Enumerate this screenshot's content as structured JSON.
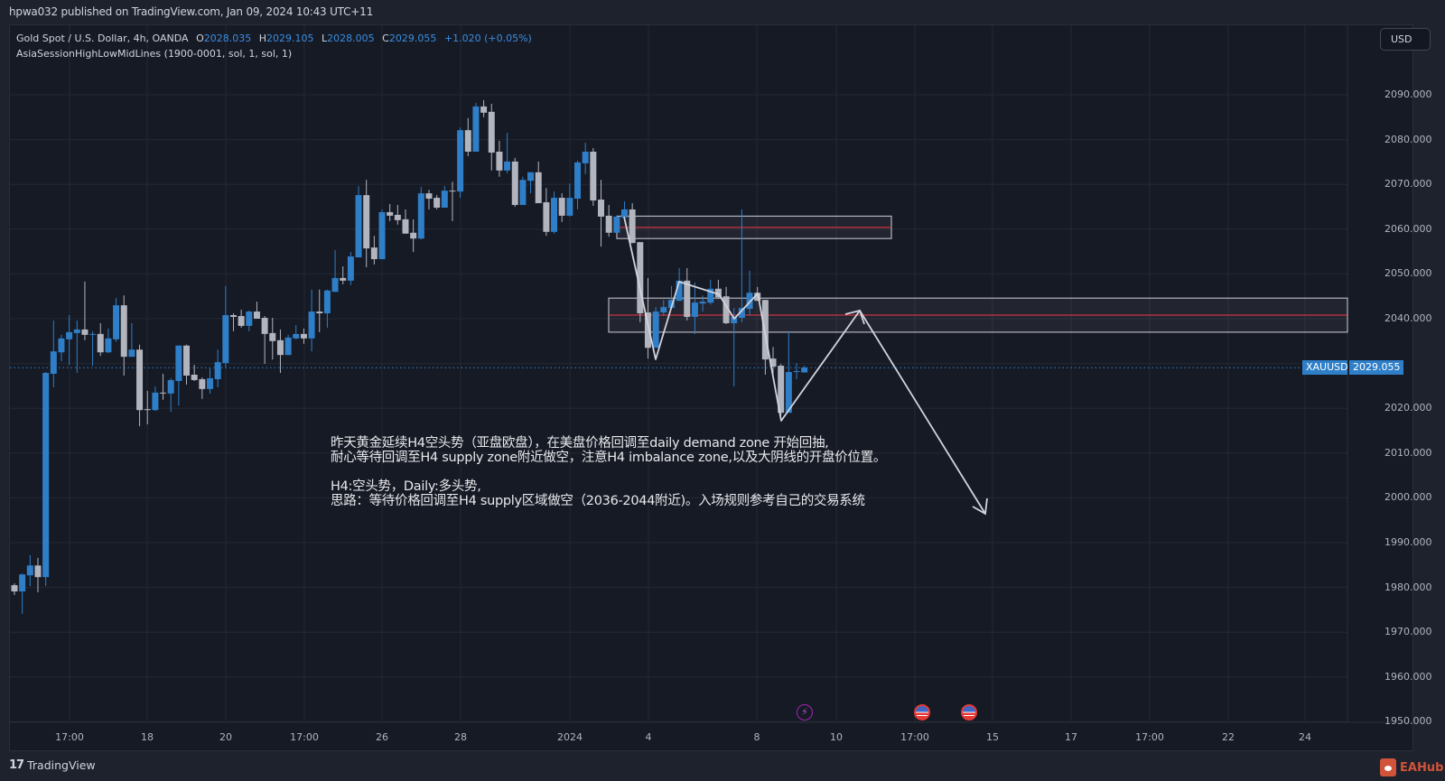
{
  "header": {
    "publish_line": "hpwa032 published on TradingView.com, Jan 09, 2024 10:43 UTC+11"
  },
  "legend": {
    "symbol_desc": "Gold Spot / U.S. Dollar, 4h, OANDA",
    "o_label": "O",
    "o_value": "2028.035",
    "h_label": "H",
    "h_value": "2029.105",
    "l_label": "L",
    "l_value": "2028.005",
    "c_label": "C",
    "c_value": "2029.055",
    "change": "+1.020 (+0.05%)",
    "indicator": "AsiaSessionHighLowMidLines (1900-0001, sol, 1, sol, 1)"
  },
  "currency_button": "USD",
  "price_tag": {
    "symbol": "XAUUSD",
    "price": "2029.055"
  },
  "annotation": {
    "lines": [
      "昨天黄金延续H4空头势（亚盘欧盘），在美盘价格回调至daily demand zone 开始回抽,",
      "耐心等待回调至H4 supply zone附近做空，注意H4 imbalance zone,以及大阴线的开盘价位置。",
      "",
      "H4:空头势，Daily:多头势,",
      "思路：等待价格回调至H4 supply区域做空（2036-2044附近)。入场规则参考自己的交易系统"
    ]
  },
  "footer": {
    "brand": "TradingView",
    "watermark": "EAHub"
  },
  "colors": {
    "up": "#2f7fc8",
    "down": "#b2b5be",
    "zone_line": "#f23645",
    "zone_border": "#b2b5be",
    "accent": "#2f7fc8"
  },
  "events": [
    {
      "type": "lightning-icon",
      "x": 891
    },
    {
      "type": "us-flag-icon",
      "x": 1021
    },
    {
      "type": "us-flag-icon",
      "x": 1073
    }
  ],
  "chart_data": {
    "type": "candlestick",
    "title": "Gold Spot / U.S. Dollar, 4h, OANDA",
    "symbol": "XAUUSD",
    "timeframe": "4h",
    "xlabel": "",
    "ylabel": "USD",
    "ylim": [
      1946,
      2096
    ],
    "y_ticks": [
      2090,
      2080,
      2070,
      2060,
      2050,
      2040,
      2030,
      2020,
      2010,
      2000,
      1990,
      1980,
      1970,
      1960,
      1950
    ],
    "x_ticks": [
      {
        "label": "17:00",
        "x": 77
      },
      {
        "label": "18",
        "x": 163
      },
      {
        "label": "20",
        "x": 250
      },
      {
        "label": "17:00",
        "x": 337
      },
      {
        "label": "26",
        "x": 423
      },
      {
        "label": "28",
        "x": 510
      },
      {
        "label": "2024",
        "x": 631
      },
      {
        "label": "4",
        "x": 718
      },
      {
        "label": "8",
        "x": 838
      },
      {
        "label": "10",
        "x": 926
      },
      {
        "label": "17:00",
        "x": 1013
      },
      {
        "label": "15",
        "x": 1099
      },
      {
        "label": "17",
        "x": 1186
      },
      {
        "label": "17:00",
        "x": 1273
      },
      {
        "label": "22",
        "x": 1360
      },
      {
        "label": "24",
        "x": 1445
      }
    ],
    "last_price": 2029.055,
    "candles": [
      [
        1980.5,
        1980.9,
        1978.3,
        1979.1
      ],
      [
        1979.1,
        1983.1,
        1974.1,
        1982.9
      ],
      [
        1982.7,
        1987.2,
        1980.3,
        1984.9
      ],
      [
        1984.9,
        1986.6,
        1978.9,
        1982.3
      ],
      [
        1982.3,
        2028.1,
        1980.3,
        2027.9
      ],
      [
        2027.7,
        2039.6,
        2024.7,
        2032.7
      ],
      [
        2032.5,
        2036.4,
        2030.5,
        2035.6
      ],
      [
        2035.4,
        2040.8,
        2029.7,
        2037.0
      ],
      [
        2036.8,
        2039.6,
        2027.9,
        2037.6
      ],
      [
        2037.6,
        2048.3,
        2035.2,
        2036.4
      ],
      [
        2036.4,
        2037.2,
        2029.5,
        2036.6
      ],
      [
        2036.6,
        2039.0,
        2031.7,
        2032.5
      ],
      [
        2032.5,
        2037.8,
        2032.3,
        2035.6
      ],
      [
        2035.4,
        2044.6,
        2034.8,
        2043.0
      ],
      [
        2043.0,
        2045.2,
        2027.3,
        2031.5
      ],
      [
        2031.5,
        2039.0,
        2031.5,
        2033.1
      ],
      [
        2033.1,
        2034.2,
        2016.0,
        2019.6
      ],
      [
        2019.8,
        2023.9,
        2016.4,
        2019.6
      ],
      [
        2019.6,
        2024.9,
        2019.4,
        2023.5
      ],
      [
        2023.5,
        2027.7,
        2021.9,
        2023.3
      ],
      [
        2023.3,
        2026.7,
        2019.2,
        2026.3
      ],
      [
        2026.1,
        2034.0,
        2020.6,
        2034.0
      ],
      [
        2034.0,
        2034.2,
        2025.3,
        2027.3
      ],
      [
        2027.5,
        2029.7,
        2026.1,
        2026.3
      ],
      [
        2026.5,
        2026.9,
        2022.1,
        2024.3
      ],
      [
        2024.3,
        2028.9,
        2023.3,
        2026.7
      ],
      [
        2026.5,
        2033.1,
        2024.7,
        2030.3
      ],
      [
        2030.1,
        2047.3,
        2029.1,
        2040.8
      ],
      [
        2040.8,
        2041.2,
        2037.2,
        2040.4
      ],
      [
        2040.6,
        2042.0,
        2038.0,
        2038.4
      ],
      [
        2038.4,
        2041.8,
        2037.2,
        2041.6
      ],
      [
        2041.6,
        2043.8,
        2040.0,
        2040.0
      ],
      [
        2040.2,
        2040.6,
        2029.9,
        2036.6
      ],
      [
        2036.8,
        2040.2,
        2030.9,
        2035.0
      ],
      [
        2035.2,
        2037.6,
        2027.9,
        2031.9
      ],
      [
        2031.9,
        2036.4,
        2031.9,
        2035.8
      ],
      [
        2035.6,
        2038.6,
        2035.4,
        2036.6
      ],
      [
        2036.6,
        2037.8,
        2034.4,
        2035.6
      ],
      [
        2035.6,
        2046.5,
        2032.7,
        2041.6
      ],
      [
        2041.6,
        2046.5,
        2037.0,
        2041.2
      ],
      [
        2041.2,
        2046.5,
        2038.0,
        2046.3
      ],
      [
        2046.0,
        2055.3,
        2046.0,
        2049.1
      ],
      [
        2049.1,
        2051.7,
        2047.7,
        2048.5
      ],
      [
        2048.5,
        2054.9,
        2047.5,
        2053.9
      ],
      [
        2053.7,
        2069.6,
        2053.7,
        2067.6
      ],
      [
        2067.6,
        2071.0,
        2051.5,
        2055.7
      ],
      [
        2055.9,
        2058.5,
        2052.1,
        2053.3
      ],
      [
        2053.3,
        2064.4,
        2053.3,
        2063.8
      ],
      [
        2063.8,
        2065.6,
        2061.8,
        2063.0
      ],
      [
        2063.2,
        2065.4,
        2061.0,
        2062.0
      ],
      [
        2062.2,
        2064.4,
        2059.0,
        2059.0
      ],
      [
        2059.2,
        2062.2,
        2054.9,
        2057.9
      ],
      [
        2057.9,
        2069.4,
        2057.7,
        2068.0
      ],
      [
        2068.0,
        2068.8,
        2064.4,
        2066.8
      ],
      [
        2067.0,
        2067.6,
        2064.4,
        2064.8
      ],
      [
        2064.8,
        2069.6,
        2064.8,
        2068.6
      ],
      [
        2068.6,
        2070.6,
        2061.8,
        2068.4
      ],
      [
        2068.4,
        2082.7,
        2067.0,
        2082.1
      ],
      [
        2082.1,
        2084.8,
        2076.3,
        2077.3
      ],
      [
        2077.3,
        2088.2,
        2077.3,
        2087.4
      ],
      [
        2087.4,
        2088.8,
        2085.0,
        2086.0
      ],
      [
        2086.2,
        2088.0,
        2073.1,
        2077.1
      ],
      [
        2077.3,
        2079.7,
        2071.7,
        2073.1
      ],
      [
        2073.1,
        2081.5,
        2072.5,
        2075.1
      ],
      [
        2075.1,
        2075.9,
        2065.0,
        2065.4
      ],
      [
        2065.4,
        2071.7,
        2065.4,
        2071.0
      ],
      [
        2070.8,
        2072.7,
        2068.0,
        2072.7
      ],
      [
        2072.7,
        2075.1,
        2065.8,
        2065.8
      ],
      [
        2066.0,
        2069.2,
        2058.5,
        2059.4
      ],
      [
        2059.4,
        2068.4,
        2059.0,
        2067.0
      ],
      [
        2067.0,
        2068.0,
        2061.6,
        2063.0
      ],
      [
        2063.0,
        2070.2,
        2062.8,
        2067.0
      ],
      [
        2066.8,
        2075.3,
        2064.4,
        2074.9
      ],
      [
        2074.7,
        2079.3,
        2072.3,
        2077.3
      ],
      [
        2077.3,
        2078.1,
        2065.2,
        2066.4
      ],
      [
        2066.6,
        2071.0,
        2056.1,
        2062.8
      ],
      [
        2063.0,
        2065.4,
        2058.3,
        2059.2
      ],
      [
        2059.2,
        2063.0,
        2059.2,
        2062.8
      ],
      [
        2062.6,
        2066.2,
        2062.6,
        2064.4
      ],
      [
        2064.4,
        2065.8,
        2056.9,
        2056.9
      ],
      [
        2057.1,
        2057.1,
        2039.2,
        2041.2
      ],
      [
        2041.4,
        2049.1,
        2031.1,
        2033.5
      ],
      [
        2033.5,
        2042.6,
        2033.5,
        2041.6
      ],
      [
        2041.4,
        2044.2,
        2040.6,
        2042.6
      ],
      [
        2042.4,
        2047.3,
        2042.4,
        2044.2
      ],
      [
        2044.0,
        2051.3,
        2044.0,
        2048.5
      ],
      [
        2048.5,
        2051.3,
        2039.6,
        2040.4
      ],
      [
        2040.4,
        2048.1,
        2036.6,
        2043.6
      ],
      [
        2043.4,
        2045.2,
        2041.6,
        2043.8
      ],
      [
        2043.6,
        2048.7,
        2043.2,
        2046.7
      ],
      [
        2046.7,
        2048.7,
        2044.4,
        2044.8
      ],
      [
        2045.0,
        2047.1,
        2038.8,
        2039.0
      ],
      [
        2039.0,
        2042.4,
        2024.9,
        2040.4
      ],
      [
        2040.2,
        2064.4,
        2039.2,
        2042.4
      ],
      [
        2042.2,
        2050.7,
        2040.8,
        2045.8
      ],
      [
        2045.8,
        2047.1,
        2044.0,
        2044.0
      ],
      [
        2044.2,
        2044.2,
        2027.5,
        2030.9
      ],
      [
        2031.1,
        2033.7,
        2027.5,
        2029.3
      ],
      [
        2029.5,
        2029.9,
        2018.4,
        2019.0
      ],
      [
        2019.0,
        2037.2,
        2019.0,
        2028.1
      ],
      [
        2028.1,
        2030.1,
        2026.5,
        2028.3
      ],
      [
        2028.0,
        2029.5,
        2028.0,
        2029.1
      ]
    ],
    "candle_format": [
      "open",
      "high",
      "low",
      "close"
    ],
    "drawings": {
      "supply_zone_upper": {
        "top": 2062.9,
        "bottom": 2057.9,
        "mid": 2060.4
      },
      "supply_zone_lower": {
        "top": 2044.6,
        "bottom": 2037.0,
        "mid": 2040.8
      },
      "projection_path": "zigzag down then rally to ~2041 then drop to ~1995"
    }
  }
}
